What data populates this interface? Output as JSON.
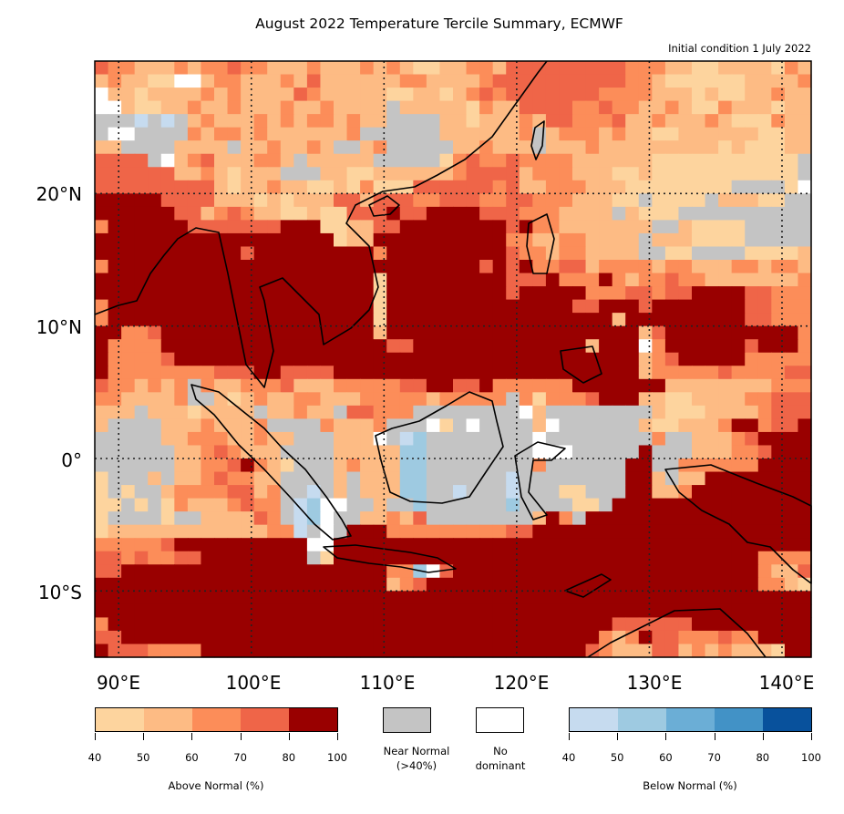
{
  "title": "August 2022 Temperature Tercile Summary, ECMWF",
  "subtitle": "Initial condition 1 July 2022",
  "axes": {
    "lon_labels": [
      "90°E",
      "100°E",
      "110°E",
      "120°E",
      "130°E",
      "140°E"
    ],
    "lat_labels": [
      "20°N",
      "10°N",
      "0°",
      "10°S"
    ]
  },
  "colors": {
    "a": "#fdd49e",
    "b": "#fdbb84",
    "c": "#fc8d59",
    "d": "#ef6548",
    "e": "#990000",
    "n": "#c4c4c4",
    "w": "#ffffff",
    "1": "#c6dbef",
    "2": "#9ecae1",
    "3": "#6baed6",
    "4": "#4292c6",
    "5": "#08519c"
  },
  "grid_extent_deg": {
    "lon_min": 88.2,
    "lon_max": 142.2,
    "lat_max": 30,
    "lat_min": -15
  },
  "grid_rows": [
    "dccbbbcbccdccbbbcbbbcbcbaabbccbdddddddddcccbbaabbbbacb",
    "bcbbaawwbccbbbcbdbbbbbbccbbbbcddddddddddccbaaaaaabbbbc",
    "wbbabbbbcbcbbbbdcbbbbbaabbabcdcdddddddccccbbbabaabbcb",
    "wwbaabbcbbcbbbcbbcbbbbnbbbbbacbbddddccdccbbcbaacbbbabb",
    "nnn1n1nbcbbbcbcbccbcbbnnnnbbabbbcbddcccdbbcbbbcbaaacbb",
    "nwwnnnncbccbcbbbbbbcnnnnnnbbbbbbcnbcccbcbbaabbbbbbaabb",
    "bbnnnnbbbbnbbcbbcbnnbcnnnnnbbcbbbnbbbcbbbbbbbbbabaaabb",
    "ddddnwbcdbbbccbnbbbbbnnnnnacdccdccccbbbbbbaaaaaaaaaaan",
    "ddddddbbcbabbbnnnbbaabbbbbbcddddbcccbbbaabaaaaaaaaaaan",
    "dddddddddbabbcbbaabacaaaddddddcdbbcccbbbaaaaaaaannnnaw",
    "eeeeeddddbbbababbbddbdddccdddccddcccbbbaanaaaanbbbaann",
    "eeeeeeddbcdcbbaabaadddeddeeeedddcccbbbbnbaaannnnnnnnnn",
    "ceeeeeedddddddeeeaabbddeeeeeeeedeccbbbbbbbnnbaaaannnnnn",
    "eeeeeeeeeeeeeeeeeeabbeeeeeeeeeeccbbccbbbbnbbbaaaannnnn",
    "eeeeeeeeeeedeeeeeeeeeceeeeeeeeedccbccbbbbnnaannnnaaaab",
    "ceeeeeeeeeeeeeeeeeeeeeeeeeeeedediccddbccccbccbbbccbccb",
    "eeeeeeeeeeeeeeeeeeeeeaeeeeeeeeedddecccecbccdccbbbbbbbc",
    "eeeeeeeeeeeeeeeeeeeeeaeeeeeeeeedeeeeecccddcddeeeeddccc",
    "ceeeeeeeeeeeeeeeeeeeeaeeeeeeeeeeeeeeddeeedeeeeeeeddccc",
    "ceeeeeeeeeeeeeeeeeeeeaeeeeeeeeeeeeeeeeebeeeeeeeeeddccc",
    "eeccdeeeeeeeeeeeeeeeebeeeeeeeeeeeeeeeeeeebdeeeeeeeeeec",
    "ecccceeeeeeeeeeeeeeeeeddeeeeeeeeeeeeebeeewceeeeeedeeec",
    "eccccdeeeeeeeeeeeeeeeeeeeeeeeeeeeeeeeeeeebcdeeeeeccccc",
    "eccccccccdddeeddddeeeeeeeeeeeeeeeeeeeeeeebcccccdccccdd",
    "dccbcbcncbbcccdbbbcccccddeeddecccccceeeeeeebbbbbbbbcccd",
    "ccbbbbcnnbabcbbccbbbcccccbcccccncacccdeeebbaabbbbccddd",
    "bbbnbbbabbbbnbbcbbnddcccnnnnnnnnwbnnnnnnnnbaaabbbbcdddd",
    "bnnnnbbbcbbbcnnnncbbbcnnnwanwnnnnbwnnnnnnbaabbbceecdde",
    "nnnnnbbcccbbcbbnnnbbbwn12nnnnnnnnwnnnnnnnncnnbbbcdeeee",
    "nnnnnnbbcdcbbbnnnnbbbbb22nnnnnnnnwwwnnnnnennnbbbccdeee",
    "nnnnnnbbccdecbannnbcbbb22nnnnnnnncnnnnnneenncccccceeee",
    "annnbnbbcdccbbnnnnbnbbb22nnnnnn1nnnnnnnneebnbbeeeeeeee",
    "anannbccccddbcnn1nbnbbb22nn1nnn1nnnaannneebbceeeeeeeee",
    "aananacbbbcdccn12wwnnbnn2nnnnnn2nnnnaaneeeeeeeeeeeeeee",
    "annnnannbbbbdcn12wnnbbcbdnnnnnnnnbecneeeeeeeeeeeeeeeee",
    "abbbbbbbbbbbbcc1nwneeecccccccccddeeeeeeeeeeeeeeeeeeeee",
    "cccccdeeeeeeeeeewweeeeeeeeeeeeeeeeeeeeeeeeeeeeeeeeeeee",
    "ddcdccddeeeeeeeenaeeeeeeeeeeeeeeeeeeeeeeeeeeeeeeeecccc",
    "ddeeeeeeeeeeeeeeeeeeeecc2wdeeeeeeeeeeeeeeeeeeeeeeecbbd",
    "eeeeeeeeeeeeeeeeeeeeeebcdeeeeeeeeeeeeeeeeeeeeeeeeeccba",
    "eeeeeeeeeeeeeeeeeeeeeeeeeeeeeeeeeeeeeeeeeeeeeeeeeeeeee",
    "eeeeeeeeeeeeeeeeeeeeeeeeeeeeeeeeeeeeeeeeeeeeeeeeeeeeee",
    "ceeeeeeeeeeeeeeeeeeeeeeeeeeeeeeeeeeeeeeddddddeeeeeeeee",
    "ddeeeeeeeeeeeeeeeeeeeeeeeeeeeeeeeeeeeecbceddcccdcceeee",
    "edddcccceeeeeeeeeeeeeeeeeeeeeeeeeeeeedcbbbddbcbcbbbaee"
  ],
  "legend": {
    "above": {
      "label": "Above Normal (%)",
      "ticks": [
        "40",
        "50",
        "60",
        "70",
        "80",
        "100"
      ],
      "colors": [
        "#fdd49e",
        "#fdbb84",
        "#fc8d59",
        "#ef6548",
        "#990000"
      ]
    },
    "near_normal": {
      "label_line1": "Near Normal",
      "label_line2": "(>40%)",
      "color": "#c4c4c4"
    },
    "no_dominant": {
      "label_line1": "No",
      "label_line2": "dominant",
      "color": "#ffffff"
    },
    "below": {
      "label": "Below Normal (%)",
      "ticks": [
        "40",
        "50",
        "60",
        "70",
        "80",
        "100"
      ],
      "colors": [
        "#c6dbef",
        "#9ecae1",
        "#6baed6",
        "#4292c6",
        "#08519c"
      ]
    }
  }
}
